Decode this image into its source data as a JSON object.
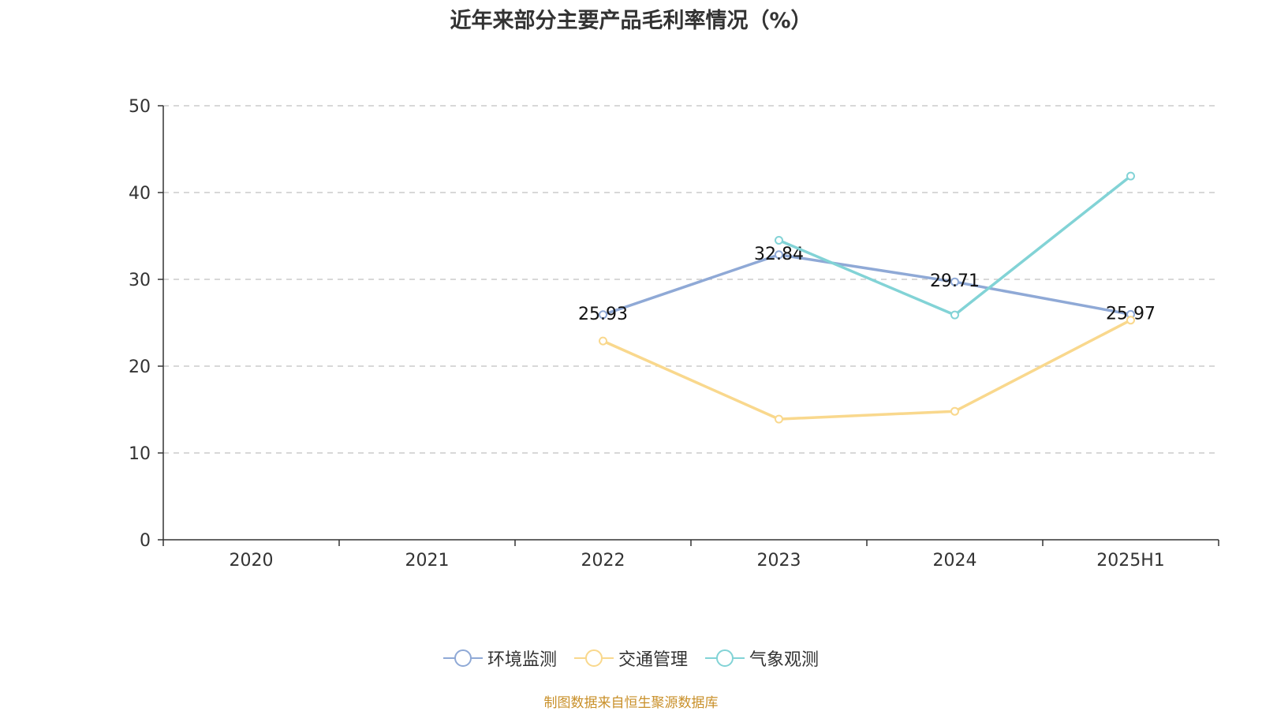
{
  "title": "近年来部分主要产品毛利率情况（%）",
  "source": "制图数据来自恒生聚源数据库",
  "colors": {
    "环境监测": "#8fa9d6",
    "交通管理": "#f9d88d",
    "气象观测": "#82d3d6"
  },
  "chart_data": {
    "type": "line",
    "title": "近年来部分主要产品毛利率情况（%）",
    "categories": [
      "2020",
      "2021",
      "2022",
      "2023",
      "2024",
      "2025H1"
    ],
    "ylim": [
      0,
      50
    ],
    "yticks": [
      0,
      10,
      20,
      30,
      40,
      50
    ],
    "grid": true,
    "legend_position": "bottom",
    "series": [
      {
        "name": "环境监测",
        "values": [
          null,
          null,
          25.93,
          32.84,
          29.71,
          25.97
        ],
        "labels": true
      },
      {
        "name": "交通管理",
        "values": [
          null,
          null,
          22.9,
          13.9,
          14.8,
          25.3
        ],
        "labels": false
      },
      {
        "name": "气象观测",
        "values": [
          null,
          null,
          null,
          34.5,
          25.9,
          41.9
        ],
        "labels": false
      }
    ]
  }
}
